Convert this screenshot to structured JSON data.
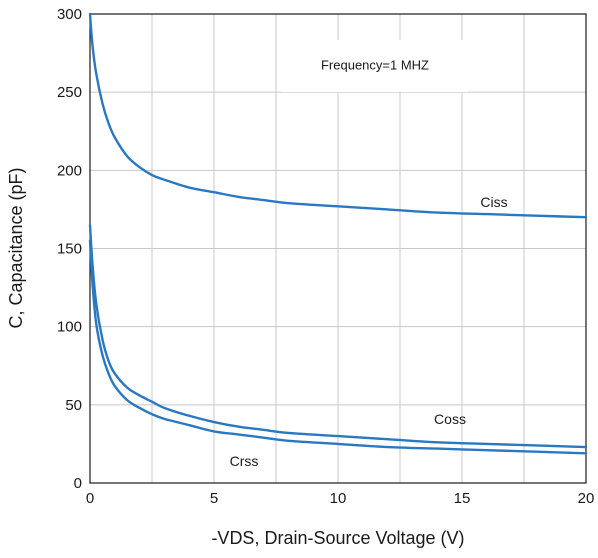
{
  "chart_data": {
    "type": "line",
    "xlabel": "-VDS, Drain-Source Voltage (V)",
    "ylabel": "C, Capacitance (pF)",
    "xlim": [
      0,
      20
    ],
    "ylim": [
      0,
      300
    ],
    "x_ticks": [
      0,
      5,
      10,
      15,
      20
    ],
    "y_ticks": [
      0,
      50,
      100,
      150,
      200,
      250,
      300
    ],
    "grid": true,
    "annotation": "Frequency=1 MHZ",
    "line_color": "#2a78c2",
    "series": [
      {
        "name": "Ciss",
        "x": [
          0,
          0.1,
          0.25,
          0.5,
          0.75,
          1,
          1.5,
          2,
          2.5,
          3,
          4,
          5,
          6,
          7,
          8,
          10,
          12,
          14,
          16,
          18,
          20
        ],
        "y": [
          300,
          280,
          262,
          243,
          230,
          221,
          209,
          202,
          197,
          194,
          189,
          186,
          183,
          181,
          179,
          177,
          175,
          173,
          172,
          171,
          170
        ]
      },
      {
        "name": "Coss",
        "x": [
          0,
          0.1,
          0.25,
          0.5,
          0.75,
          1,
          1.5,
          2,
          2.5,
          3,
          4,
          5,
          6,
          7,
          8,
          10,
          12,
          14,
          16,
          18,
          20
        ],
        "y": [
          165,
          140,
          115,
          92,
          78,
          70,
          61,
          56,
          52,
          48,
          43,
          39,
          36,
          34,
          32,
          30,
          28,
          26,
          25,
          24,
          23
        ]
      },
      {
        "name": "Crss",
        "x": [
          0,
          0.1,
          0.25,
          0.5,
          0.75,
          1,
          1.5,
          2,
          2.5,
          3,
          4,
          5,
          6,
          7,
          8,
          10,
          12,
          14,
          16,
          18,
          20
        ],
        "y": [
          155,
          128,
          102,
          82,
          70,
          62,
          53,
          48,
          44,
          41,
          37,
          33,
          31,
          29,
          27,
          25,
          23,
          22,
          21,
          20,
          19
        ]
      }
    ]
  }
}
